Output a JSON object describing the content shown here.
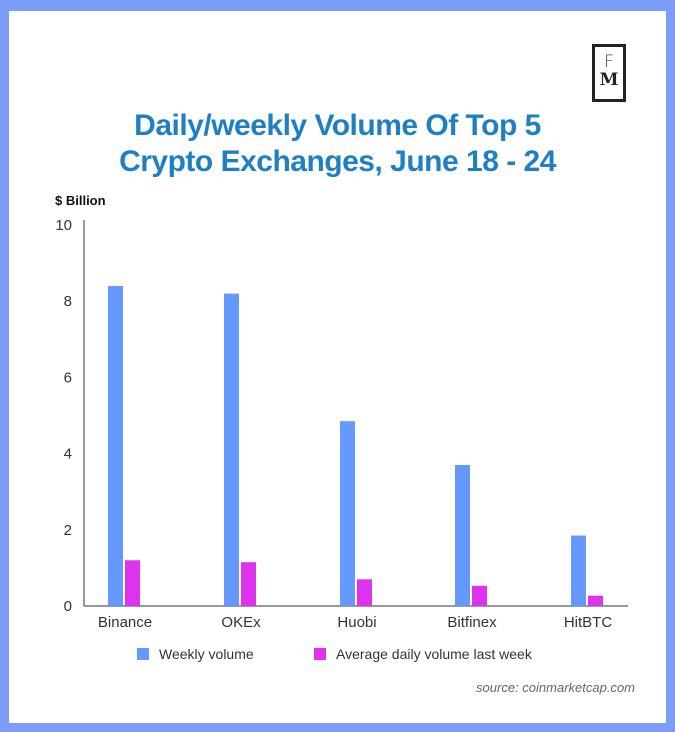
{
  "logo": {
    "top": "F",
    "bottom": "M"
  },
  "title_line1": "Daily/weekly Volume Of Top 5",
  "title_line2": "Crypto Exchanges, June 18 - 24",
  "source": "source: coinmarketcap.com",
  "colors": {
    "weekly": "#6699ff",
    "daily": "#dd33ee",
    "title": "#1f7fc4",
    "frame": "#7b9cf7"
  },
  "chart_data": {
    "type": "bar",
    "title": "Daily/weekly Volume Of Top 5 Crypto Exchanges, June 18 - 24",
    "ylabel": "$ Billion",
    "xlabel": "",
    "ylim": [
      0,
      10
    ],
    "yticks": [
      "0",
      "2",
      "4",
      "6",
      "8",
      "10"
    ],
    "grid": false,
    "legend_position": "bottom",
    "categories": [
      "Binance",
      "OKEx",
      "Huobi",
      "Bitfinex",
      "HitBTC"
    ],
    "series": [
      {
        "name": "Weekly volume",
        "values": [
          8.4,
          8.2,
          4.85,
          3.7,
          1.85
        ]
      },
      {
        "name": "Average daily volume last week",
        "values": [
          1.2,
          1.15,
          0.7,
          0.53,
          0.27
        ]
      }
    ]
  }
}
